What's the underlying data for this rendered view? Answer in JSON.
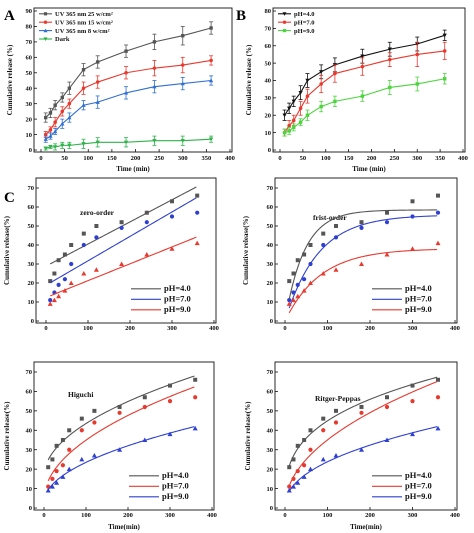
{
  "panel_labels": [
    "A",
    "B",
    "C"
  ],
  "chart_data": [
    {
      "id": "A",
      "type": "line",
      "xlabel": "Time (min)",
      "ylabel": "Cumulative release (%)",
      "xlim": [
        0,
        400
      ],
      "ylim": [
        0,
        90
      ],
      "xticks": [
        0,
        50,
        100,
        150,
        200,
        250,
        300,
        350,
        400
      ],
      "yticks": [
        0,
        10,
        20,
        30,
        40,
        50,
        60,
        70,
        80,
        90
      ],
      "legend_position": "top-left",
      "grid": false,
      "series": [
        {
          "name": "UV 365 nm 25 w/cm²",
          "color": "#555555",
          "marker": "square",
          "x": [
            10,
            20,
            30,
            45,
            60,
            90,
            120,
            180,
            240,
            300,
            360
          ],
          "y": [
            21,
            24,
            29,
            34,
            40,
            52,
            57,
            64,
            70,
            74,
            79
          ],
          "err": [
            3,
            3,
            3,
            3,
            4,
            4,
            4,
            4,
            5,
            6,
            4
          ]
        },
        {
          "name": "UV 365 nm 15 w/cm²",
          "color": "#e8392f",
          "marker": "circle",
          "x": [
            10,
            20,
            30,
            45,
            60,
            90,
            120,
            180,
            240,
            300,
            360
          ],
          "y": [
            10,
            13,
            18,
            25,
            30,
            40,
            44,
            50,
            53,
            55,
            58
          ],
          "err": [
            2,
            2,
            3,
            3,
            3,
            4,
            4,
            4,
            5,
            5,
            3
          ]
        },
        {
          "name": "UV 365 nm 8 w/cm²",
          "color": "#2f6fd0",
          "marker": "triangle-up",
          "x": [
            10,
            20,
            30,
            45,
            60,
            90,
            120,
            180,
            240,
            300,
            360
          ],
          "y": [
            7,
            9,
            12,
            17,
            21,
            29,
            31,
            37,
            41,
            43,
            45
          ],
          "err": [
            2,
            2,
            2,
            3,
            3,
            3,
            4,
            4,
            4,
            4,
            3
          ]
        },
        {
          "name": "Dark",
          "color": "#2fb34a",
          "marker": "triangle-down",
          "x": [
            10,
            20,
            30,
            45,
            60,
            90,
            120,
            180,
            240,
            300,
            360
          ],
          "y": [
            1,
            2,
            2,
            3,
            3,
            4,
            5,
            5,
            6,
            6,
            7
          ],
          "err": [
            1,
            1,
            2,
            2,
            2,
            3,
            3,
            3,
            3,
            3,
            2
          ]
        }
      ]
    },
    {
      "id": "B",
      "type": "line",
      "xlabel": "Time (min)",
      "ylabel": "Cumulative release (%)",
      "xlim": [
        0,
        400
      ],
      "ylim": [
        0,
        80
      ],
      "xticks": [
        0,
        50,
        100,
        150,
        200,
        250,
        300,
        350,
        400
      ],
      "yticks": [
        0,
        10,
        20,
        30,
        40,
        50,
        60,
        70,
        80
      ],
      "legend_position": "top-left",
      "grid": false,
      "series": [
        {
          "name": "pH=4.0",
          "color": "#111111",
          "marker": "triangle-down",
          "x": [
            10,
            20,
            30,
            45,
            60,
            90,
            120,
            180,
            240,
            300,
            360
          ],
          "y": [
            20,
            24,
            28,
            33,
            40,
            45,
            49,
            54,
            58,
            61,
            66
          ],
          "err": [
            3,
            3,
            3,
            4,
            4,
            4,
            4,
            4,
            4,
            4,
            3
          ]
        },
        {
          "name": "pH=7.0",
          "color": "#e8392f",
          "marker": "circle",
          "x": [
            10,
            20,
            30,
            45,
            60,
            90,
            120,
            180,
            240,
            300,
            360
          ],
          "y": [
            10,
            14,
            17,
            24,
            31,
            38,
            44,
            48,
            52,
            55,
            57
          ],
          "err": [
            2,
            3,
            3,
            4,
            4,
            5,
            5,
            5,
            4,
            7,
            5
          ]
        },
        {
          "name": "pH=9.0",
          "color": "#4cd43c",
          "marker": "square",
          "x": [
            10,
            20,
            30,
            45,
            60,
            90,
            120,
            180,
            240,
            300,
            360
          ],
          "y": [
            10,
            11,
            13,
            16,
            20,
            25,
            28,
            31,
            36,
            38,
            41
          ],
          "err": [
            2,
            2,
            2,
            2,
            3,
            3,
            3,
            3,
            4,
            4,
            3
          ]
        }
      ]
    },
    {
      "id": "C1",
      "type": "scatter",
      "annotation": "zero-order",
      "xlabel": "",
      "ylabel": "Cumulative release(%)",
      "xlim": [
        0,
        400
      ],
      "ylim": [
        0,
        70
      ],
      "xticks": [
        0,
        100,
        200,
        300,
        400
      ],
      "yticks": [
        0,
        10,
        20,
        30,
        40,
        50,
        60,
        70
      ],
      "legend_position": "bottom-right",
      "fit": "linear",
      "series": [
        {
          "name": "pH=4.0",
          "color": "#555555",
          "marker": "square",
          "x": [
            10,
            20,
            30,
            45,
            60,
            90,
            120,
            180,
            240,
            300,
            360
          ],
          "y": [
            21,
            25,
            32,
            35,
            40,
            46,
            50,
            52,
            57,
            63,
            66
          ]
        },
        {
          "name": "pH=7.0",
          "color": "#2f40d0",
          "marker": "circle",
          "x": [
            10,
            20,
            30,
            45,
            60,
            90,
            120,
            180,
            240,
            300,
            360
          ],
          "y": [
            11,
            15,
            19,
            22,
            30,
            40,
            44,
            49,
            52,
            55,
            57
          ]
        },
        {
          "name": "pH=9.0",
          "color": "#e8392f",
          "marker": "triangle-up",
          "x": [
            10,
            20,
            30,
            45,
            60,
            90,
            120,
            180,
            240,
            300,
            360
          ],
          "y": [
            9,
            11,
            13,
            16,
            20,
            25,
            27,
            30,
            35,
            38,
            41
          ]
        }
      ]
    },
    {
      "id": "C2",
      "type": "scatter",
      "annotation": "frist-order",
      "xlabel": "",
      "ylabel": "Cumulative release(%)",
      "xlim": [
        0,
        400
      ],
      "ylim": [
        0,
        70
      ],
      "xticks": [
        0,
        100,
        200,
        300,
        400
      ],
      "yticks": [
        0,
        10,
        20,
        30,
        40,
        50,
        60,
        70
      ],
      "legend_position": "bottom-right",
      "fit": "first-order",
      "series": [
        {
          "name": "pH=4.0",
          "color": "#555555",
          "marker": "square",
          "x": [
            10,
            20,
            30,
            45,
            60,
            90,
            120,
            180,
            240,
            300,
            360
          ],
          "y": [
            21,
            25,
            32,
            35,
            40,
            46,
            50,
            52,
            57,
            63,
            66
          ]
        },
        {
          "name": "pH=7.0",
          "color": "#2f40d0",
          "marker": "circle",
          "x": [
            10,
            20,
            30,
            45,
            60,
            90,
            120,
            180,
            240,
            300,
            360
          ],
          "y": [
            11,
            15,
            19,
            22,
            30,
            40,
            44,
            49,
            52,
            55,
            57
          ]
        },
        {
          "name": "pH=9.0",
          "color": "#e8392f",
          "marker": "triangle-up",
          "x": [
            10,
            20,
            30,
            45,
            60,
            90,
            120,
            180,
            240,
            300,
            360
          ],
          "y": [
            9,
            11,
            13,
            16,
            20,
            25,
            27,
            30,
            35,
            38,
            41
          ]
        }
      ]
    },
    {
      "id": "C3",
      "type": "scatter",
      "annotation": "Higuchi",
      "xlabel": "Time(min)",
      "ylabel": "Cumulative release(%)",
      "xlim": [
        0,
        400
      ],
      "ylim": [
        0,
        70
      ],
      "xticks": [
        0,
        100,
        200,
        300,
        400
      ],
      "yticks": [
        0,
        10,
        20,
        30,
        40,
        50,
        60,
        70
      ],
      "legend_position": "bottom-right",
      "fit": "higuchi",
      "series": [
        {
          "name": "pH=4.0",
          "color": "#555555",
          "marker": "square",
          "x": [
            10,
            20,
            30,
            45,
            60,
            90,
            120,
            180,
            240,
            300,
            360
          ],
          "y": [
            21,
            25,
            32,
            35,
            40,
            46,
            50,
            52,
            57,
            63,
            66
          ]
        },
        {
          "name": "pH=7.0",
          "color": "#e8392f",
          "marker": "circle",
          "x": [
            10,
            20,
            30,
            45,
            60,
            90,
            120,
            180,
            240,
            300,
            360
          ],
          "y": [
            11,
            15,
            19,
            22,
            30,
            40,
            44,
            49,
            52,
            55,
            57
          ]
        },
        {
          "name": "pH=9.0",
          "color": "#2f40d0",
          "marker": "triangle-up",
          "x": [
            10,
            20,
            30,
            45,
            60,
            90,
            120,
            180,
            240,
            300,
            360
          ],
          "y": [
            9,
            11,
            13,
            16,
            20,
            25,
            27,
            30,
            35,
            38,
            41
          ]
        }
      ]
    },
    {
      "id": "C4",
      "type": "scatter",
      "annotation": "Ritger-Peppas",
      "xlabel": "Time(min)",
      "ylabel": "Cumulative release(%)",
      "xlim": [
        0,
        400
      ],
      "ylim": [
        0,
        70
      ],
      "xticks": [
        0,
        100,
        200,
        300,
        400
      ],
      "yticks": [
        0,
        10,
        20,
        30,
        40,
        50,
        60,
        70
      ],
      "legend_position": "bottom-right",
      "fit": "power",
      "series": [
        {
          "name": "pH=4.0",
          "color": "#555555",
          "marker": "square",
          "x": [
            10,
            20,
            30,
            45,
            60,
            90,
            120,
            180,
            240,
            300,
            360
          ],
          "y": [
            21,
            25,
            32,
            35,
            40,
            46,
            50,
            52,
            57,
            63,
            66
          ]
        },
        {
          "name": "pH=7.0",
          "color": "#e8392f",
          "marker": "circle",
          "x": [
            10,
            20,
            30,
            45,
            60,
            90,
            120,
            180,
            240,
            300,
            360
          ],
          "y": [
            11,
            15,
            19,
            22,
            30,
            40,
            44,
            49,
            52,
            55,
            57
          ]
        },
        {
          "name": "pH=9.0",
          "color": "#2f40d0",
          "marker": "triangle-up",
          "x": [
            10,
            20,
            30,
            45,
            60,
            90,
            120,
            180,
            240,
            300,
            360
          ],
          "y": [
            9,
            11,
            13,
            16,
            20,
            25,
            27,
            30,
            35,
            38,
            41
          ]
        }
      ]
    }
  ]
}
